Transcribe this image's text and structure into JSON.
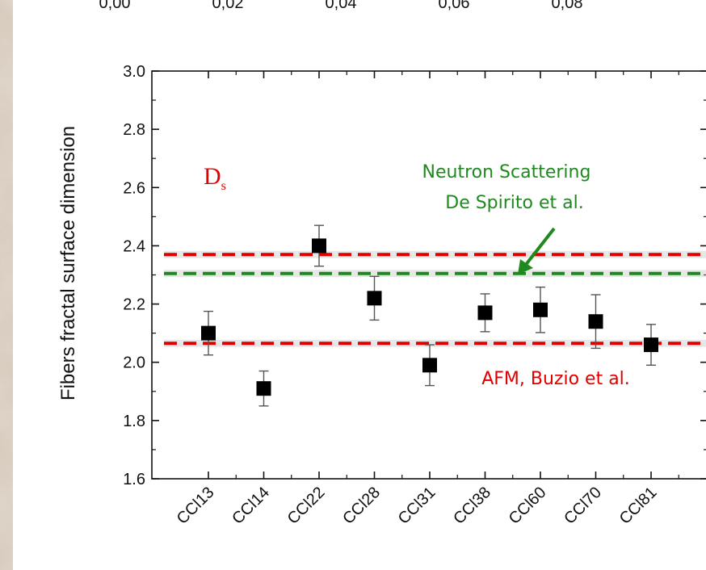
{
  "chart_data": {
    "type": "scatter",
    "ylabel": "Fibers fractal surface dimension",
    "ylim": [
      1.6,
      3.0
    ],
    "yticks": [
      "1.6",
      "1.8",
      "2.0",
      "2.2",
      "2.4",
      "2.6",
      "2.8",
      "3.0"
    ],
    "categories": [
      "CCl13",
      "CCl14",
      "CCl22",
      "CCl28",
      "CCl31",
      "CCl38",
      "CCl60",
      "CCl70",
      "CCl81"
    ],
    "values": [
      2.1,
      1.91,
      2.4,
      2.22,
      1.99,
      2.17,
      2.18,
      2.14,
      2.06
    ],
    "errors": [
      0.075,
      0.06,
      0.07,
      0.075,
      0.07,
      0.065,
      0.078,
      0.092,
      0.07
    ],
    "reference_lines": [
      {
        "value": 2.37,
        "color": "#e00000"
      },
      {
        "value": 2.305,
        "color": "#1e8a1e"
      },
      {
        "value": 2.065,
        "color": "#e00000"
      }
    ],
    "symbol": {
      "main": "D",
      "sub": "s"
    },
    "annotations": {
      "neutron_line1": "Neutron Scattering",
      "neutron_line2": "De Spirito et al.",
      "afm": "AFM, Buzio et al."
    },
    "top_axis_labels": [
      "0,00",
      "0,02",
      "0,04",
      "0,06",
      "0,08"
    ],
    "colors": {
      "marker": "#000000",
      "red": "#e00000",
      "green": "#1e8a1e"
    }
  }
}
